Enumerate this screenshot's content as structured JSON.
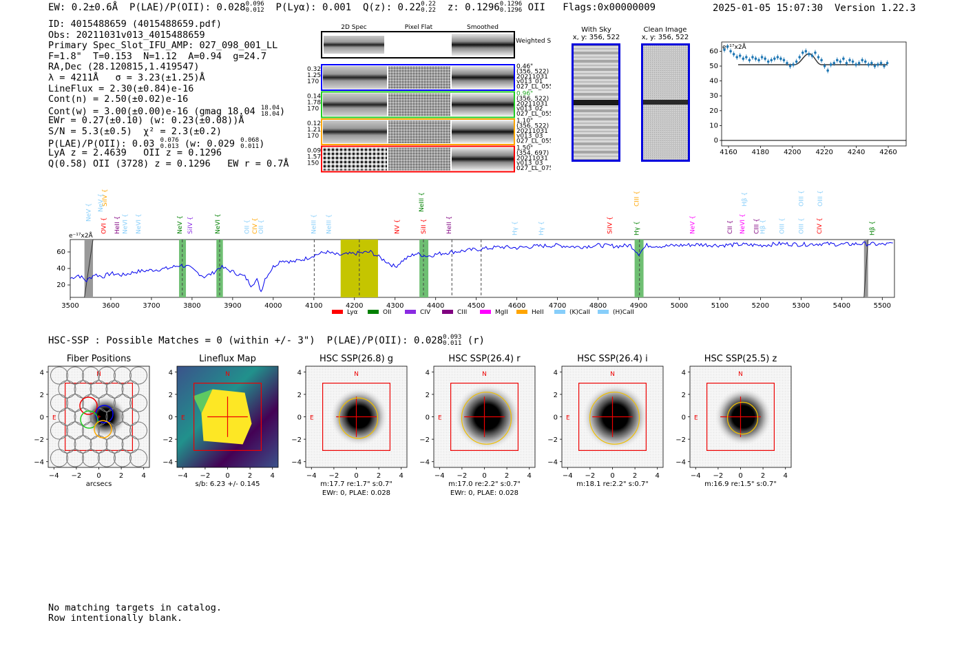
{
  "header": {
    "ew": "EW: 0.2±0.6Å",
    "plae_label": "P(LAE)/P(OII): 0.028",
    "plae_up": "0.096",
    "plae_lo": "0.012",
    "plya": "P(Lyα): 0.001",
    "qz_label": "Q(z): 0.22",
    "qz_up": "0.22",
    "qz_lo": "0.22",
    "z_label": "z: 0.1296",
    "z_up": "0.1296",
    "z_lo": "0.1296",
    "z_line": "OII",
    "flags": "Flags:0x00000009",
    "timestamp": "2025-01-05 15:07:30",
    "version": "Version 1.22.3"
  },
  "info": {
    "id": "ID: 4015488659 (4015488659.pdf)",
    "obs": "Obs: 20211031v013_4015488659",
    "primary": "Primary Spec_Slot_IFU_AMP: 027_098_001_LL",
    "fiber": "F=1.8\"  T=0.153  N=1.12  A=0.94  g=24.7",
    "radec": "RA,Dec (28.120815,1.419547)",
    "lambda": "λ = 4211Å   σ = 3.23(±1.25)Å",
    "lineflux": "LineFlux = 2.30(±0.84)e-16",
    "contn": "Cont(n) = 2.50(±0.02)e-16",
    "contw": "Cont(w) = 3.00(±0.00)e-16 (gmag 18.04",
    "contw_up": "18.04",
    "contw_lo": "18.04",
    "ewr": "EWr = 0.27(±0.10) (w: 0.23(±0.08))Å",
    "sn": "S/N = 5.3(±0.5)  χ² = 2.3(±0.2)",
    "plae": "P(LAE)/P(OII): 0.03",
    "plae_up": "0.076",
    "plae_lo": "0.013",
    "plae_w": "(w: 0.029",
    "plae_w_up": "0.068",
    "plae_w_lo": "0.011",
    "lya": "LyA z = 2.4639   OII z = 0.1296",
    "q": "Q(0.58) OII (3728) z = 0.1296   EW r = 0.7Å"
  },
  "cutouts": {
    "col_2d": "2D Spec",
    "col_flat": "Pixel Flat",
    "col_smooth": "Smoothed",
    "weighted": "Weighted Sum",
    "rows": [
      {
        "left": [
          "0.32",
          "1.25",
          "170"
        ],
        "right": [
          "0.46\"",
          "(356, 522)",
          "20211031",
          "v013_01",
          "027_LL_055"
        ],
        "color": "#0000ff"
      },
      {
        "left": [
          "0.14",
          "1.78",
          "170"
        ],
        "right": [
          "0.96\"",
          "(356, 522)",
          "20211031",
          "v013_02",
          "027_LL_055"
        ],
        "color": "#22cc22"
      },
      {
        "left": [
          "0.12",
          "1.21",
          "170"
        ],
        "right": [
          "1.10\"",
          "(356, 522)",
          "20211031",
          "v013_03",
          "027_LL_055"
        ],
        "color": "#ffa500"
      },
      {
        "left": [
          "0.09",
          "1.57",
          "150"
        ],
        "right": [
          "1.50\"",
          "(354, 697)",
          "20211031",
          "v013_03",
          "027_LL_075"
        ],
        "color": "#ff0000"
      }
    ],
    "with_sky": "With Sky",
    "with_sky_xy": "x, y: 356, 522",
    "clean": "Clean Image",
    "clean_xy": "x, y: 356, 522"
  },
  "zoom_plot": {
    "unit": "e⁻¹⁷x2Å",
    "yticks": [
      "60",
      "50",
      "40",
      "30",
      "20",
      "10",
      "0"
    ],
    "xticks": [
      "4160",
      "4180",
      "4200",
      "4220",
      "4240",
      "4260"
    ]
  },
  "spectrum": {
    "unit": "e⁻¹⁷x2Å",
    "yticks": [
      "60",
      "40",
      "20"
    ],
    "xticks": [
      "3500",
      "3600",
      "3700",
      "3800",
      "3900",
      "4000",
      "4100",
      "4200",
      "4300",
      "4400",
      "4500",
      "4600",
      "4700",
      "4800",
      "4900",
      "5000",
      "5100",
      "5200",
      "5300",
      "5400",
      "5500"
    ],
    "lines": [
      {
        "name": "NeV",
        "x": 3550,
        "color": "#87cefa",
        "row": 2
      },
      {
        "name": "SiIV",
        "x": 3590,
        "color": "#ffa500",
        "row": 1
      },
      {
        "name": "NeV",
        "x": 3580,
        "color": "#87cefa",
        "row": 0
      },
      {
        "name": "OVI",
        "x": 3587,
        "color": "#ff0000",
        "row": 3
      },
      {
        "name": "HeII",
        "x": 3620,
        "color": "#800080",
        "row": 3
      },
      {
        "name": "NeVI",
        "x": 3640,
        "color": "#87cefa",
        "row": 3
      },
      {
        "name": "NeVI",
        "x": 3673,
        "color": "#87cefa",
        "row": 3
      },
      {
        "name": "NeV",
        "x": 3775,
        "color": "#008000",
        "row": 3
      },
      {
        "name": "SiIV",
        "x": 3800,
        "color": "#8a2be2",
        "row": 3
      },
      {
        "name": "NeVI",
        "x": 3868,
        "color": "#008000",
        "row": 3
      },
      {
        "name": "OII",
        "x": 3940,
        "color": "#87cefa",
        "row": 3
      },
      {
        "name": "CIV",
        "x": 3960,
        "color": "#ffa500",
        "row": 3
      },
      {
        "name": "OII",
        "x": 3975,
        "color": "#87cefa",
        "row": 3
      },
      {
        "name": "NeIII",
        "x": 4105,
        "color": "#87cefa",
        "row": 3
      },
      {
        "name": "NeIII",
        "x": 4142,
        "color": "#87cefa",
        "row": 3
      },
      {
        "name": "NV",
        "x": 4310,
        "color": "#ff0000",
        "row": 3
      },
      {
        "name": "SiII",
        "x": 4375,
        "color": "#ff0000",
        "row": 3
      },
      {
        "name": "NeIII",
        "x": 4370,
        "color": "#008000",
        "row": 0
      },
      {
        "name": "HeII",
        "x": 4438,
        "color": "#800080",
        "row": 3
      },
      {
        "name": "Hγ",
        "x": 4600,
        "color": "#87cefa",
        "row": 4
      },
      {
        "name": "Hγ",
        "x": 4665,
        "color": "#87cefa",
        "row": 4
      },
      {
        "name": "SiIV",
        "x": 4834,
        "color": "#ff0000",
        "row": 3
      },
      {
        "name": "Hγ",
        "x": 4900,
        "color": "#008000",
        "row": 4
      },
      {
        "name": "CIII",
        "x": 4900,
        "color": "#ffa500",
        "row": 1
      },
      {
        "name": "NeV",
        "x": 5037,
        "color": "#ff00ff",
        "row": 3
      },
      {
        "name": "CII",
        "x": 5130,
        "color": "#800080",
        "row": 3
      },
      {
        "name": "NeVI",
        "x": 5160,
        "color": "#ff00ff",
        "row": 3
      },
      {
        "name": "Hβ",
        "x": 5165,
        "color": "#87cefa",
        "row": 1
      },
      {
        "name": "CIII",
        "x": 5195,
        "color": "#800080",
        "row": 3
      },
      {
        "name": "Hβ",
        "x": 5210,
        "color": "#87cefa",
        "row": 3
      },
      {
        "name": "OIII",
        "x": 5258,
        "color": "#87cefa",
        "row": 3
      },
      {
        "name": "OIII",
        "x": 5305,
        "color": "#87cefa",
        "row": 3
      },
      {
        "name": "OIII",
        "x": 5305,
        "color": "#87cefa",
        "row": 1
      },
      {
        "name": "OIII",
        "x": 5352,
        "color": "#87cefa",
        "row": 1
      },
      {
        "name": "CIV",
        "x": 5350,
        "color": "#ff0000",
        "row": 3
      },
      {
        "name": "Hβ",
        "x": 5480,
        "color": "#008000",
        "row": 4
      }
    ],
    "legend": [
      {
        "name": "Lyα",
        "color": "#ff0000"
      },
      {
        "name": "OII",
        "color": "#008000"
      },
      {
        "name": "CIV",
        "color": "#8a2be2"
      },
      {
        "name": "CIII",
        "color": "#800080"
      },
      {
        "name": "MgII",
        "color": "#ff00ff"
      },
      {
        "name": "HeII",
        "color": "#ffa500"
      },
      {
        "name": "(K)CaII",
        "color": "#87cefa"
      },
      {
        "name": "(H)CaII",
        "color": "#87cefa"
      }
    ]
  },
  "hsc": {
    "line": "HSC-SSP : Possible Matches = 0 (within +/- 3\")  P(LAE)/P(OII): 0.028",
    "up": "0.093",
    "lo": "0.011",
    "band": "(r)",
    "panels": [
      {
        "title": "Fiber Positions",
        "cap1": "arcsecs",
        "cap2": ""
      },
      {
        "title": "Lineflux Map",
        "cap1": "s/b: 6.23 +/- 0.145",
        "cap2": ""
      },
      {
        "title": "HSC SSP(26.8) g",
        "cap1": "m:17.7  re:1.7\"  s:0.7\"",
        "cap2": "EWr: 0, PLAE: 0.028"
      },
      {
        "title": "HSC SSP(26.4) r",
        "cap1": "m:17.0  re:2.2\"  s:0.7\"",
        "cap2": "EWr: 0, PLAE: 0.028"
      },
      {
        "title": "HSC SSP(26.4) i",
        "cap1": "m:18.1  re:2.2\"  s:0.7\"",
        "cap2": ""
      },
      {
        "title": "HSC SSP(25.5) z",
        "cap1": "m:16.9  re:1.5\"  s:0.7\"",
        "cap2": ""
      }
    ],
    "ticks": [
      "4",
      "2",
      "0",
      "−2",
      "−4"
    ],
    "xticks": [
      "−4",
      "−2",
      "0",
      "2",
      "4"
    ],
    "n": "N",
    "e": "E"
  },
  "footer": {
    "line1": "No matching targets in catalog.",
    "line2": "Row intentionally blank."
  }
}
